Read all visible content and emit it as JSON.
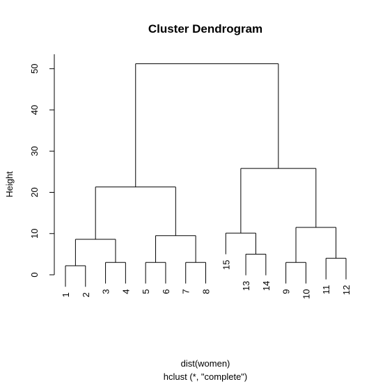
{
  "chart_data": {
    "type": "dendrogram",
    "title": "Cluster Dendrogram",
    "ylabel": "Height",
    "xlabel": "dist(women)",
    "sublabel": "hclust (*, \"complete\")",
    "ylim": [
      0,
      53.5
    ],
    "yticks": [
      0,
      10,
      20,
      30,
      40,
      50
    ],
    "color": "#000000",
    "tree": {
      "height": 51.2,
      "children": [
        {
          "height": 21.3,
          "children": [
            {
              "height": 8.6,
              "children": [
                {
                  "height": 2.2,
                  "children": [
                    {
                      "label": "1"
                    },
                    {
                      "label": "2"
                    }
                  ]
                },
                {
                  "height": 3.0,
                  "children": [
                    {
                      "label": "3"
                    },
                    {
                      "label": "4"
                    }
                  ]
                }
              ]
            },
            {
              "height": 9.5,
              "children": [
                {
                  "height": 3.0,
                  "children": [
                    {
                      "label": "5"
                    },
                    {
                      "label": "6"
                    }
                  ]
                },
                {
                  "height": 3.0,
                  "children": [
                    {
                      "label": "7"
                    },
                    {
                      "label": "8"
                    }
                  ]
                }
              ]
            }
          ]
        },
        {
          "height": 25.8,
          "children": [
            {
              "height": 10.1,
              "children": [
                {
                  "label": "15"
                },
                {
                  "height": 5.0,
                  "children": [
                    {
                      "label": "13"
                    },
                    {
                      "label": "14"
                    }
                  ]
                }
              ]
            },
            {
              "height": 11.5,
              "children": [
                {
                  "height": 3.0,
                  "children": [
                    {
                      "label": "9"
                    },
                    {
                      "label": "10"
                    }
                  ]
                },
                {
                  "height": 4.0,
                  "children": [
                    {
                      "label": "11"
                    },
                    {
                      "label": "12"
                    }
                  ]
                }
              ]
            }
          ]
        }
      ]
    }
  }
}
